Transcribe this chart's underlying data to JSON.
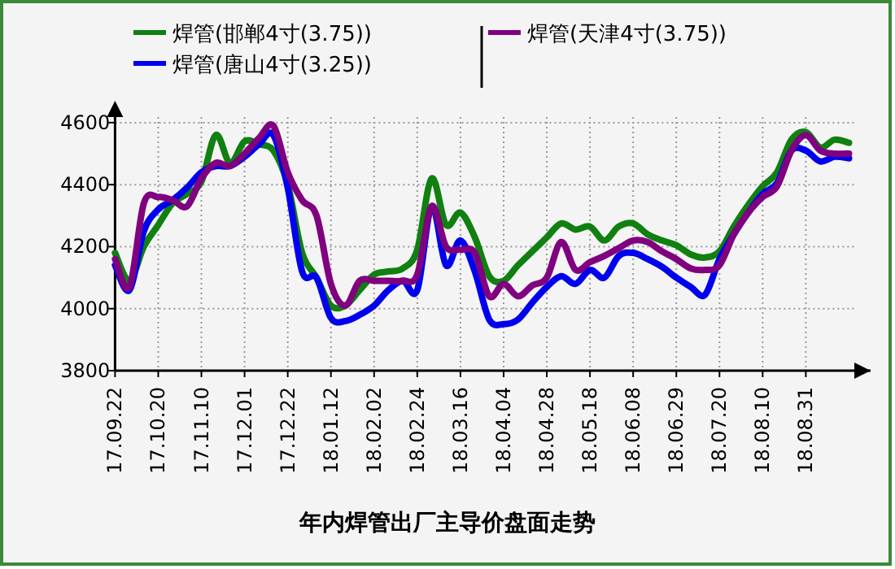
{
  "chart_data": {
    "type": "line",
    "title": "年内焊管出厂主导价盘面走势",
    "categories": [
      "17.09.22",
      null,
      null,
      "17.10.20",
      null,
      null,
      "17.11.10",
      null,
      null,
      "17.12.01",
      null,
      null,
      "17.12.22",
      null,
      null,
      "18.01.12",
      null,
      null,
      "18.02.02",
      null,
      null,
      "18.02.24",
      null,
      null,
      "18.03.16",
      null,
      null,
      "18.04.04",
      null,
      null,
      "18.04.28",
      null,
      null,
      "18.05.18",
      null,
      null,
      "18.06.08",
      null,
      null,
      "18.06.29",
      null,
      null,
      "18.07.20",
      null,
      null,
      "18.08.10",
      null,
      null,
      "18.08.31",
      null,
      null,
      null
    ],
    "series": [
      {
        "name": "焊管(邯郸4寸(3.75))",
        "color": "#108010",
        "values": [
          4180,
          4090,
          4200,
          4270,
          4340,
          4370,
          4410,
          4560,
          4470,
          4540,
          4530,
          4510,
          4400,
          4180,
          4100,
          4010,
          4010,
          4060,
          4110,
          4120,
          4130,
          4190,
          4420,
          4270,
          4310,
          4230,
          4105,
          4090,
          4140,
          4185,
          4230,
          4275,
          4255,
          4265,
          4220,
          4265,
          4275,
          4240,
          4220,
          4205,
          4175,
          4165,
          4185,
          4265,
          4335,
          4395,
          4440,
          4545,
          4570,
          4520,
          4545,
          4535
        ]
      },
      {
        "name": "焊管(唐山4寸(3.25))",
        "color": "#0000ee",
        "values": [
          4140,
          4060,
          4250,
          4320,
          4350,
          4390,
          4440,
          4460,
          4460,
          4490,
          4530,
          4560,
          4390,
          4120,
          4100,
          3970,
          3960,
          3980,
          4010,
          4060,
          4090,
          4060,
          4330,
          4140,
          4220,
          4120,
          3965,
          3950,
          3965,
          4020,
          4070,
          4105,
          4080,
          4125,
          4100,
          4170,
          4180,
          4160,
          4135,
          4100,
          4070,
          4045,
          4160,
          4240,
          4310,
          4370,
          4405,
          4510,
          4510,
          4475,
          4490,
          4485
        ]
      },
      {
        "name": "焊管(天津4寸(3.75))",
        "color": "#800080",
        "values": [
          4160,
          4070,
          4340,
          4360,
          4350,
          4330,
          4420,
          4470,
          4460,
          4500,
          4550,
          4590,
          4440,
          4350,
          4300,
          4080,
          4010,
          4090,
          4090,
          4090,
          4090,
          4110,
          4330,
          4200,
          4190,
          4180,
          4040,
          4080,
          4040,
          4075,
          4100,
          4215,
          4125,
          4150,
          4170,
          4195,
          4220,
          4215,
          4185,
          4160,
          4130,
          4125,
          4140,
          4240,
          4310,
          4360,
          4395,
          4510,
          4560,
          4510,
          4500,
          4500
        ]
      }
    ],
    "ylim": [
      3800,
      4660
    ],
    "yticks": [
      3800,
      4000,
      4200,
      4400,
      4600
    ],
    "grid": true,
    "legend": "top",
    "marker": "none",
    "line_style": "solid"
  }
}
